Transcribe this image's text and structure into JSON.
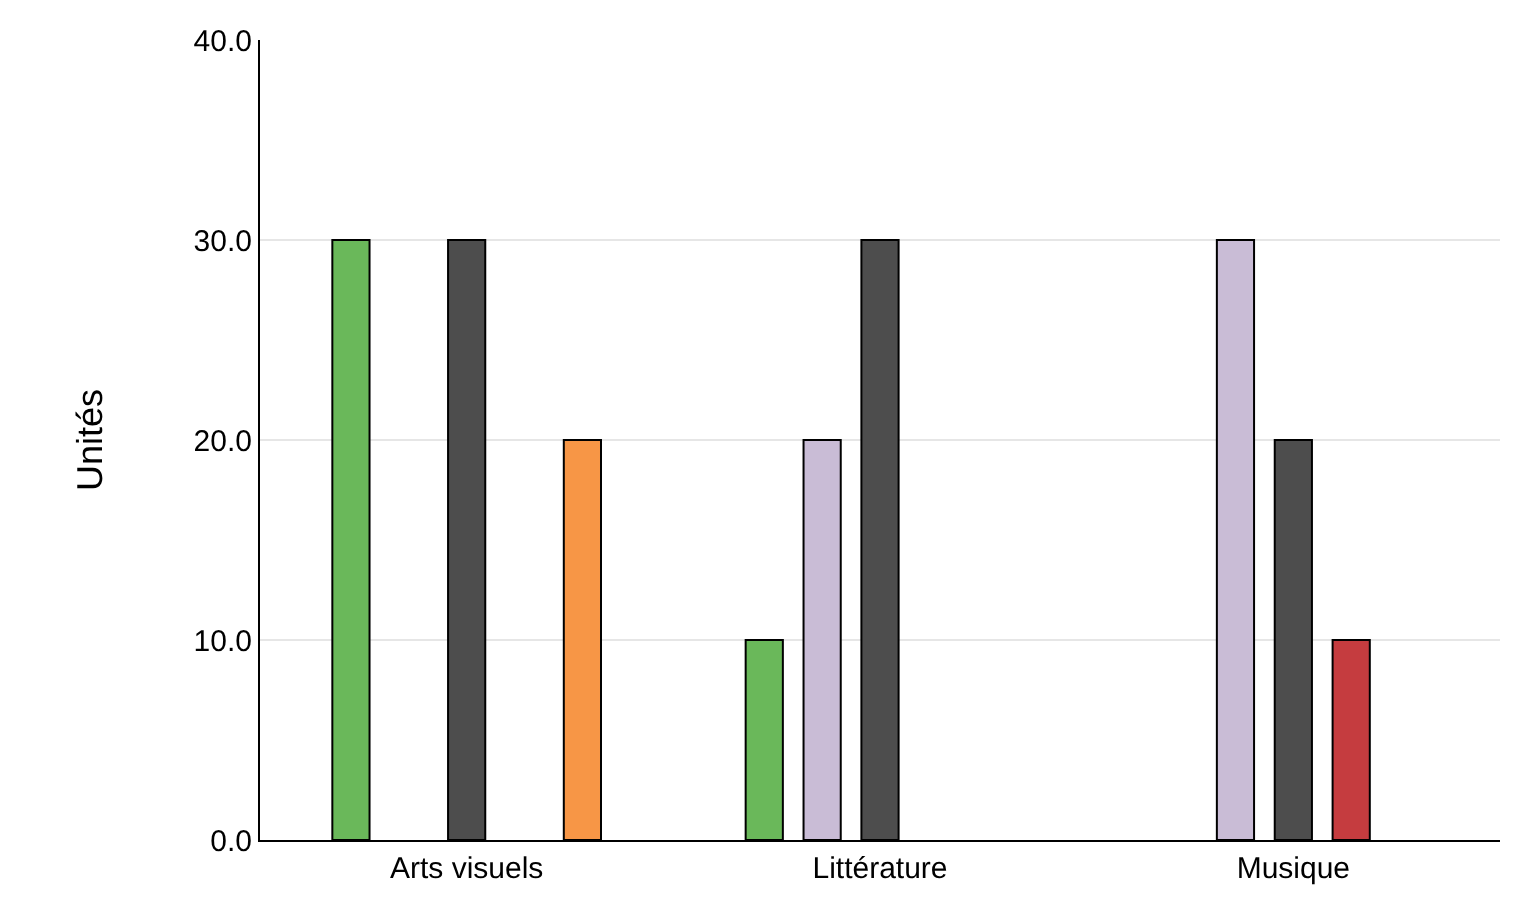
{
  "chart_data": {
    "type": "bar",
    "ylabel": "Unités",
    "categories": [
      "Arts visuels",
      "Littérature",
      "Musique"
    ],
    "series": [
      {
        "color": "#6ab85a",
        "values": [
          30,
          10,
          null
        ]
      },
      {
        "color": "#c9bcd6",
        "values": [
          null,
          20,
          30
        ]
      },
      {
        "color": "#4d4d4d",
        "values": [
          30,
          30,
          20
        ]
      },
      {
        "color": "#c53c3f",
        "values": [
          null,
          null,
          10
        ]
      },
      {
        "color": "#f79646",
        "values": [
          20,
          null,
          null
        ]
      }
    ],
    "ylim": [
      0,
      40
    ],
    "yticks": [
      {
        "value": 0,
        "label": "0.0"
      },
      {
        "value": 10,
        "label": "10.0"
      },
      {
        "value": 20,
        "label": "20.0"
      },
      {
        "value": 30,
        "label": "30.0"
      },
      {
        "value": 40,
        "label": "40.0"
      }
    ],
    "grid": "y",
    "legend": false
  }
}
